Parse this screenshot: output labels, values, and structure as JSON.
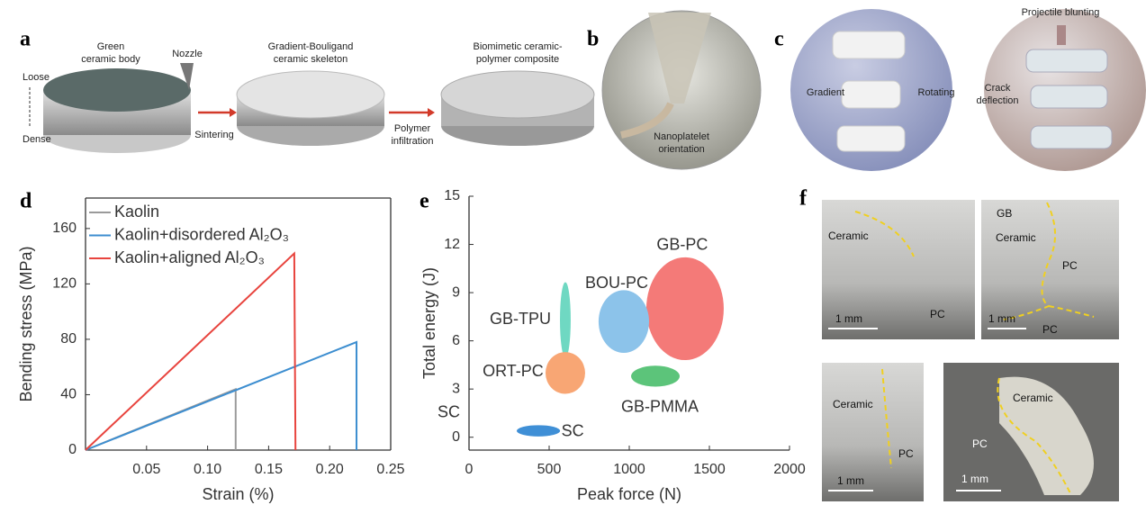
{
  "panels": {
    "a": {
      "letter": "a",
      "green": [
        "Green",
        "ceramic body"
      ],
      "nozzle": "Nozzle",
      "loose": "Loose",
      "dense": "Dense",
      "skeleton": [
        "Gradient-Bouligand",
        "ceramic skeleton"
      ],
      "sintering": "Sintering",
      "infiltration": [
        "Polymer",
        "infiltration"
      ],
      "composite": [
        "Biomimetic ceramic-",
        "polymer composite"
      ]
    },
    "b": {
      "letter": "b",
      "orientation": [
        "Nanoplatelet",
        "orientation"
      ]
    },
    "c": {
      "letter": "c",
      "gradient": "Gradient",
      "rotating": "Rotating",
      "blunting": "Projectile blunting",
      "crack": [
        "Crack",
        "deflection"
      ]
    },
    "f": {
      "letter": "f",
      "img1": [
        "Ceramic",
        "1 mm",
        "PC"
      ],
      "img2": [
        "GB",
        "Ceramic",
        "PC",
        "1 mm",
        "PC"
      ],
      "img3": [
        "Ceramic",
        "PC",
        "1 mm"
      ],
      "img4": [
        "Ceramic",
        "PC",
        "1 mm"
      ]
    }
  },
  "chart_data": [
    {
      "type": "line",
      "panel": "d",
      "x_label": "Strain (%)",
      "y_label": "Bending stress (MPa)",
      "xlim": [
        0,
        0.25
      ],
      "ylim": [
        0,
        182
      ],
      "xticks": [
        0.05,
        {
          "value": 0.1,
          "label": "0.10"
        },
        0.15,
        {
          "value": 0.2,
          "label": "0.20"
        },
        0.25
      ],
      "yticks": [
        0,
        40,
        80,
        120,
        160
      ],
      "legend": "top-left",
      "series": [
        {
          "name": "Kaolin",
          "color": "#9a9a9a",
          "x": [
            0,
            0.123,
            0.123
          ],
          "values": [
            0,
            44,
            0
          ]
        },
        {
          "name": "Kaolin+disordered Al₂O₃",
          "color": "#3d8ed0",
          "x": [
            0,
            0.222,
            0.222
          ],
          "values": [
            0,
            78,
            0
          ]
        },
        {
          "name": "Kaolin+aligned Al₂O₃",
          "color": "#e8443e",
          "x": [
            0,
            0.171,
            0.172
          ],
          "values": [
            0,
            142,
            0
          ]
        }
      ]
    },
    {
      "type": "ellipse",
      "panel": "e",
      "x_label": "Peak force (N)",
      "y_label": "Total energy (J)",
      "xlim": [
        0,
        2000
      ],
      "ylim": [
        -0.8,
        15
      ],
      "xticks": [
        0,
        500,
        1000,
        1500,
        2000
      ],
      "yticks": [
        0,
        3,
        6,
        9,
        12,
        15
      ],
      "annotation": "SC",
      "series": [
        {
          "name": "GB-PC",
          "color": "#f47a78",
          "x": 1348,
          "y": 8.0,
          "width": 483,
          "height": 6.4
        },
        {
          "name": "BOU-PC",
          "color": "#8cc3ea",
          "x": 966,
          "y": 7.2,
          "width": 315,
          "height": 3.9
        },
        {
          "name": "GB-TPU",
          "color": "#6fd8c2",
          "x": 601,
          "y": 7.3,
          "width": 67,
          "height": 4.7
        },
        {
          "name": "ORT-PC",
          "color": "#f8a674",
          "x": 601,
          "y": 4.0,
          "width": 247,
          "height": 2.6
        },
        {
          "name": "GB-PMMA",
          "color": "#5cc47a",
          "x": 1163,
          "y": 3.8,
          "width": 303,
          "height": 1.3
        },
        {
          "name": "SC",
          "color": "#3f8fd6",
          "x": 433,
          "y": 0.4,
          "width": 270,
          "height": 0.7
        }
      ]
    }
  ]
}
